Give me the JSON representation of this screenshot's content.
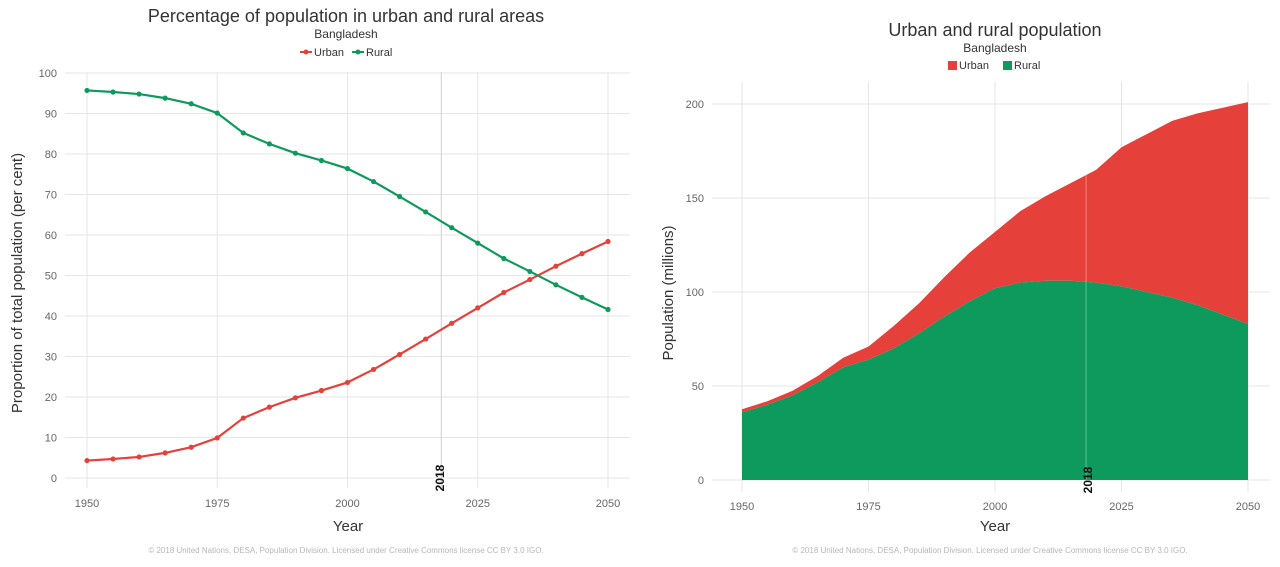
{
  "charts": [
    {
      "title": "Percentage of population in urban and rural areas",
      "subtitle": "Bangladesh",
      "legend": [
        "Urban",
        "Rural"
      ],
      "ylabel": "Proportion of total population (per cent)",
      "xlabel": "Year",
      "footer": "© 2018 United Nations, DESA, Population Division. Licensed under Creative Commons license CC BY 3.0 IGO.",
      "marker_label": "2018"
    },
    {
      "title": "Urban and rural population",
      "subtitle": "Bangladesh",
      "legend": [
        "Urban",
        "Rural"
      ],
      "ylabel": "Population (millions)",
      "xlabel": "Year",
      "footer": "© 2018 United Nations, DESA, Population Division. Licensed under Creative Commons license CC BY 3.0 IGO.",
      "marker_label": "2018"
    }
  ],
  "colors": {
    "urban": "#e5403a",
    "rural": "#0d9a5c"
  },
  "chart_data": [
    {
      "type": "line",
      "title": "Percentage of population in urban and rural areas",
      "subtitle": "Bangladesh",
      "xlabel": "Year",
      "ylabel": "Proportion of total population (per cent)",
      "x": [
        1950,
        1955,
        1960,
        1965,
        1970,
        1975,
        1980,
        1985,
        1990,
        1995,
        2000,
        2005,
        2010,
        2015,
        2020,
        2025,
        2030,
        2035,
        2040,
        2045,
        2050
      ],
      "xticks": [
        1950,
        1975,
        2000,
        2025,
        2050
      ],
      "yticks": [
        0,
        10,
        20,
        30,
        40,
        50,
        60,
        70,
        80,
        90,
        100
      ],
      "xlim": [
        1950,
        2050
      ],
      "ylim": [
        0,
        100
      ],
      "grid": true,
      "legend_position": "top",
      "marker_year": 2018,
      "series": [
        {
          "name": "Urban",
          "values": [
            4.3,
            4.7,
            5.2,
            6.2,
            7.6,
            9.9,
            14.8,
            17.5,
            19.8,
            21.6,
            23.6,
            26.8,
            30.5,
            34.3,
            38.2,
            42.0,
            45.8,
            49.0,
            52.3,
            55.4,
            58.4
          ]
        },
        {
          "name": "Rural",
          "values": [
            95.7,
            95.3,
            94.8,
            93.8,
            92.4,
            90.1,
            85.2,
            82.5,
            80.2,
            78.4,
            76.4,
            73.2,
            69.5,
            65.7,
            61.8,
            58.0,
            54.2,
            51.0,
            47.7,
            44.6,
            41.6
          ]
        }
      ]
    },
    {
      "type": "area",
      "title": "Urban and rural population",
      "subtitle": "Bangladesh",
      "xlabel": "Year",
      "ylabel": "Population (millions)",
      "stacked": true,
      "x": [
        1950,
        1955,
        1960,
        1965,
        1970,
        1975,
        1980,
        1985,
        1990,
        1995,
        2000,
        2005,
        2010,
        2015,
        2020,
        2025,
        2030,
        2035,
        2040,
        2045,
        2050
      ],
      "xticks": [
        1950,
        1975,
        2000,
        2025,
        2050
      ],
      "yticks": [
        0,
        50,
        100,
        150,
        200
      ],
      "xlim": [
        1950,
        2050
      ],
      "ylim": [
        0,
        210
      ],
      "grid": true,
      "legend_position": "top",
      "marker_year": 2018,
      "series": [
        {
          "name": "Rural",
          "values": [
            36.0,
            40.0,
            45.0,
            52.0,
            60.0,
            64.0,
            70.0,
            78.0,
            87.0,
            95.0,
            102.0,
            105.0,
            106.0,
            106.0,
            105.0,
            103.0,
            100.0,
            97.0,
            93.0,
            88.0,
            83.0
          ]
        },
        {
          "name": "Urban",
          "values": [
            1.6,
            1.9,
            2.5,
            3.4,
            5.0,
            7.0,
            12.0,
            16.0,
            21.0,
            26.0,
            30.0,
            38.0,
            45.0,
            52.0,
            60.0,
            74.0,
            84.0,
            94.0,
            102.0,
            110.0,
            118.0
          ]
        }
      ]
    }
  ]
}
